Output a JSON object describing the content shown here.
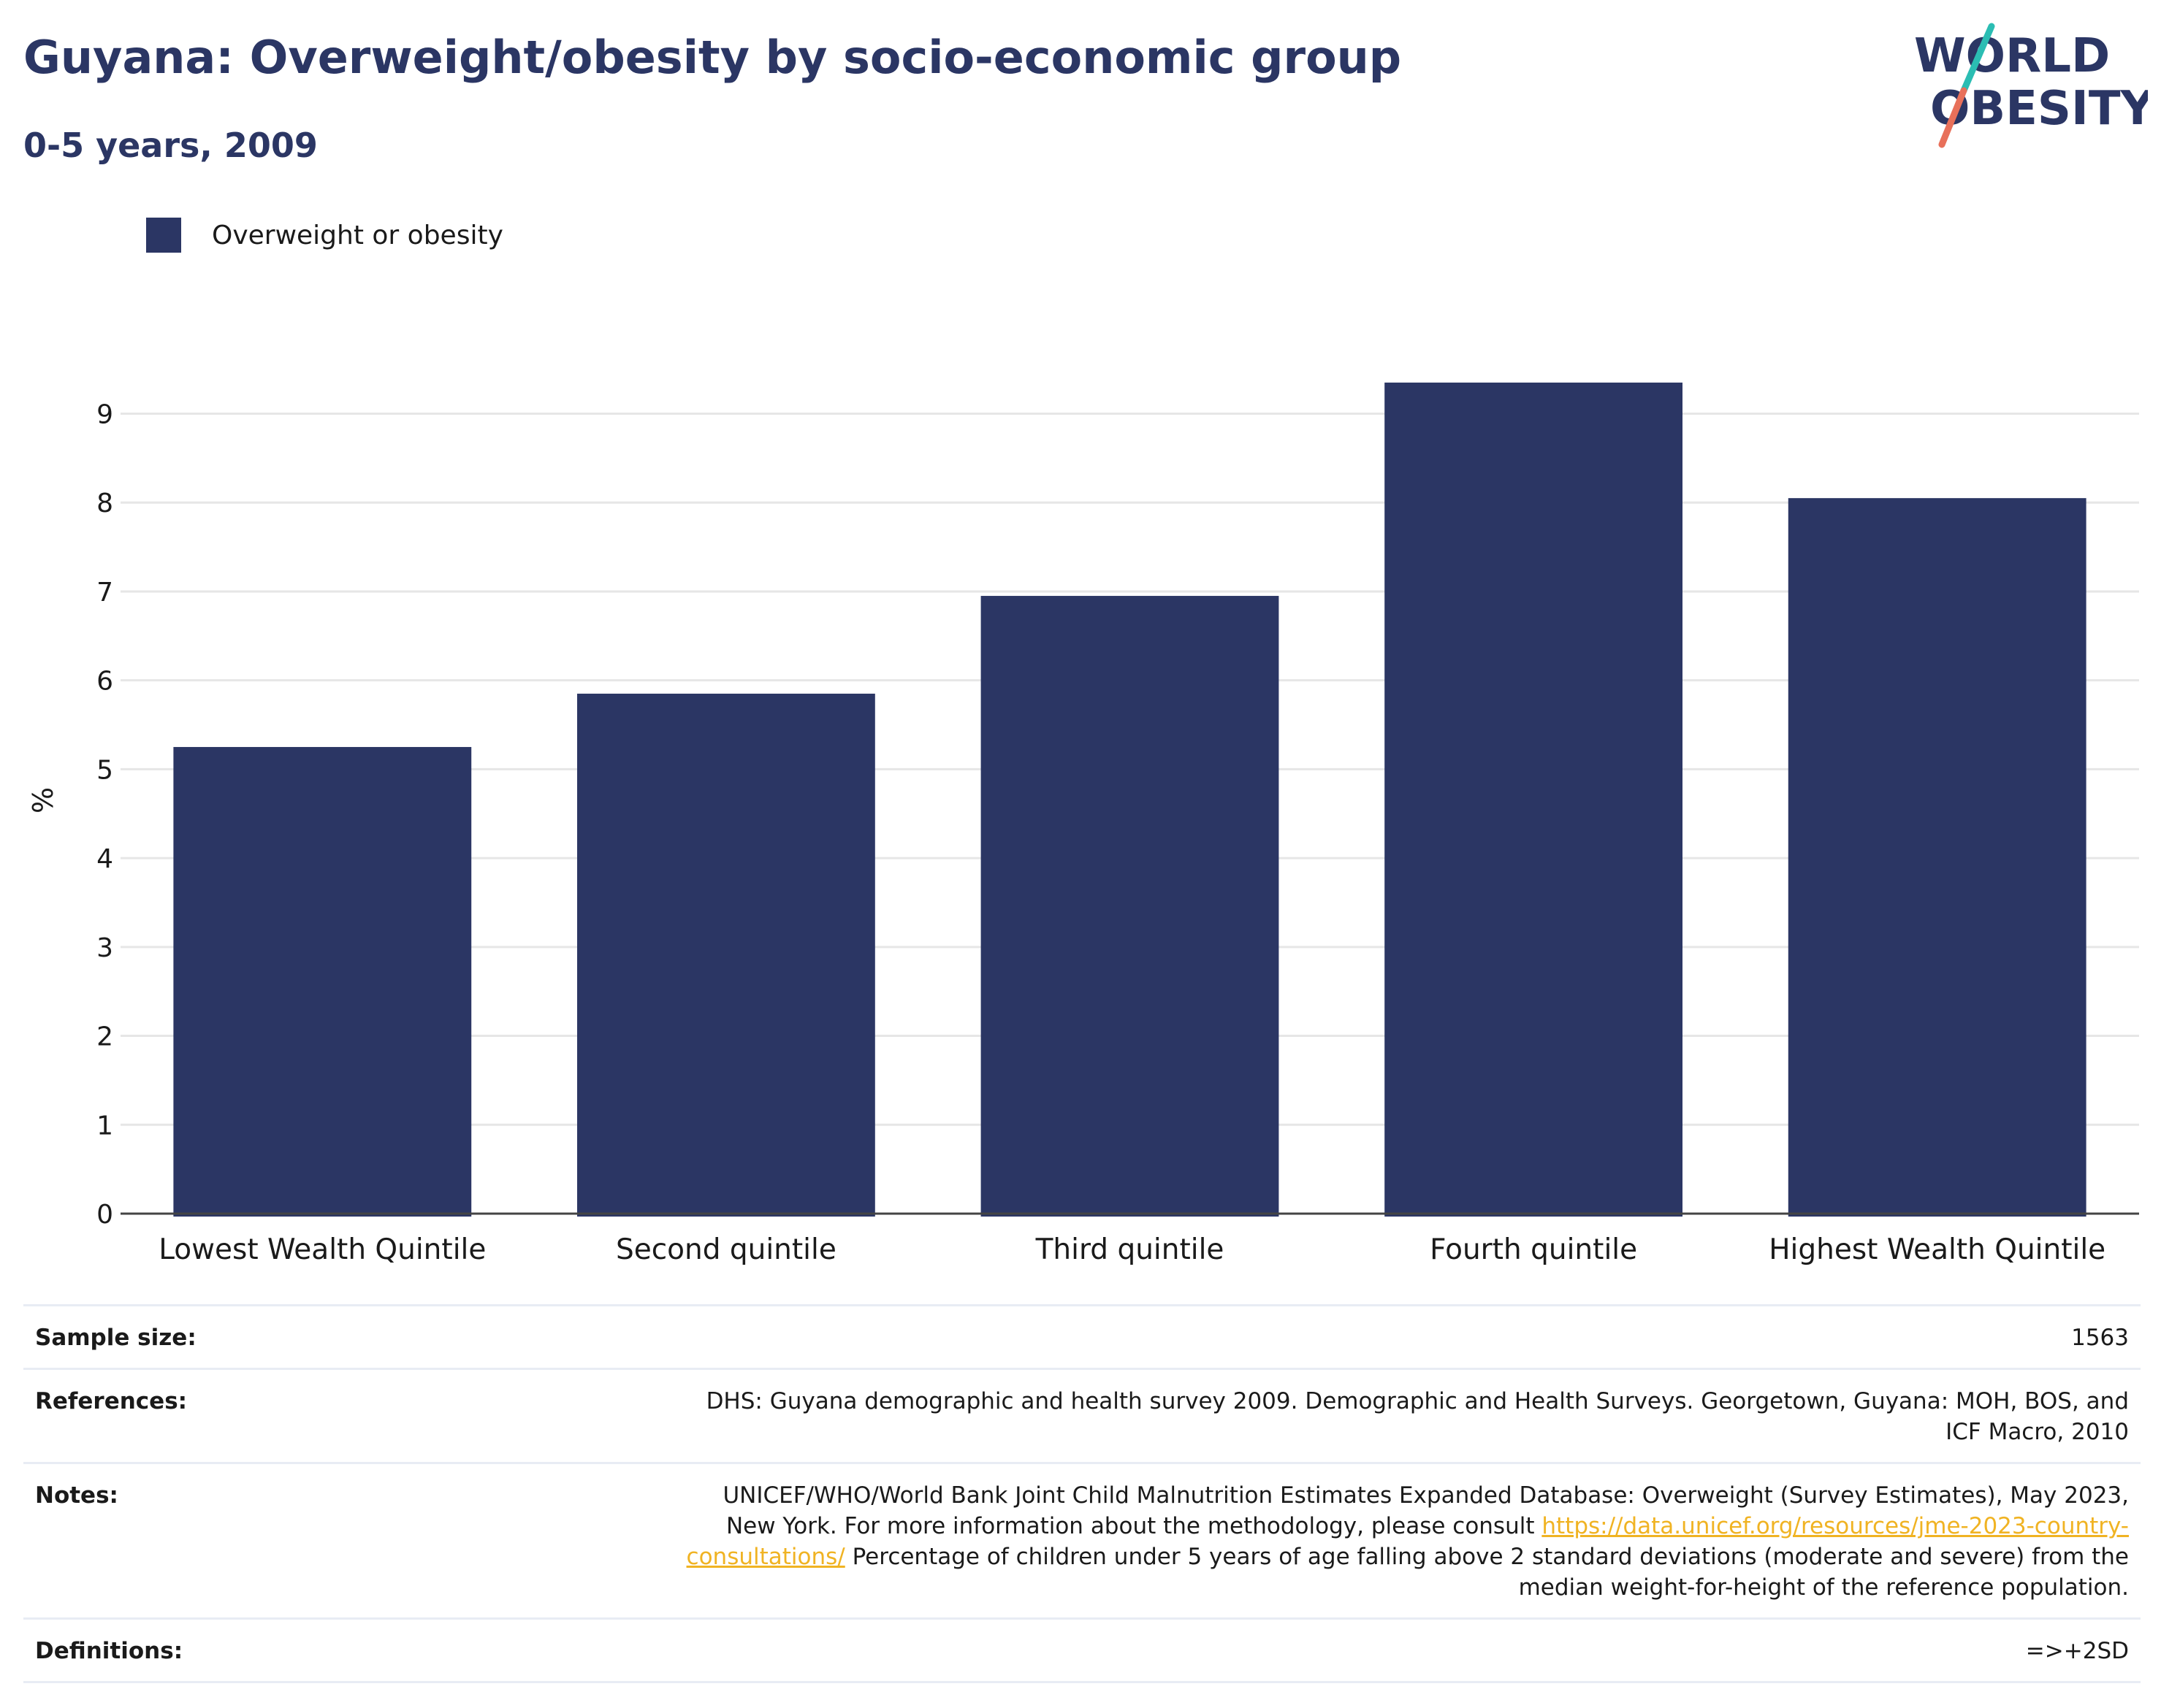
{
  "header": {
    "title": "Guyana: Overweight/obesity by socio-economic group",
    "subtitle": "0-5 years, 2009"
  },
  "logo": {
    "line1": "WORLD",
    "line2": "OBESITY",
    "icon": "slash-mark"
  },
  "legend": {
    "label": "Overweight or obesity",
    "color": "#2b3664"
  },
  "chart_data": {
    "type": "bar",
    "categories": [
      "Lowest Wealth Quintile",
      "Second quintile",
      "Third quintile",
      "Fourth quintile",
      "Highest Wealth Quintile"
    ],
    "series": [
      {
        "name": "Overweight or obesity",
        "values": [
          5.25,
          5.85,
          6.95,
          9.35,
          8.05
        ],
        "color": "#2b3664"
      }
    ],
    "ylabel": "%",
    "ylim": [
      0,
      9.3
    ],
    "yticks": [
      "0",
      "1",
      "2",
      "3",
      "4",
      "5",
      "6",
      "7",
      "8",
      "9"
    ],
    "grid": true,
    "legend_position": "top-left"
  },
  "info": {
    "sample_size": {
      "label": "Sample size:",
      "value": "1563"
    },
    "references": {
      "label": "References:",
      "value": "DHS: Guyana demographic and health survey 2009. Demographic and Health Surveys. Georgetown, Guyana: MOH, BOS, and ICF Macro, 2010"
    },
    "notes": {
      "label": "Notes:",
      "value_before": "UNICEF/WHO/World Bank Joint Child Malnutrition Estimates Expanded Database: Overweight (Survey Estimates), May 2023, New York. For more information about the methodology, please consult",
      "link": "https://data.unicef.org/resources/jme-2023-country-consultations/",
      "value_after": "Percentage of children under 5 years of age falling above 2 standard deviations (moderate and severe) from the median weight-for-height of the reference population."
    },
    "definitions": {
      "label": "Definitions:",
      "value": "=>+2SD"
    }
  }
}
